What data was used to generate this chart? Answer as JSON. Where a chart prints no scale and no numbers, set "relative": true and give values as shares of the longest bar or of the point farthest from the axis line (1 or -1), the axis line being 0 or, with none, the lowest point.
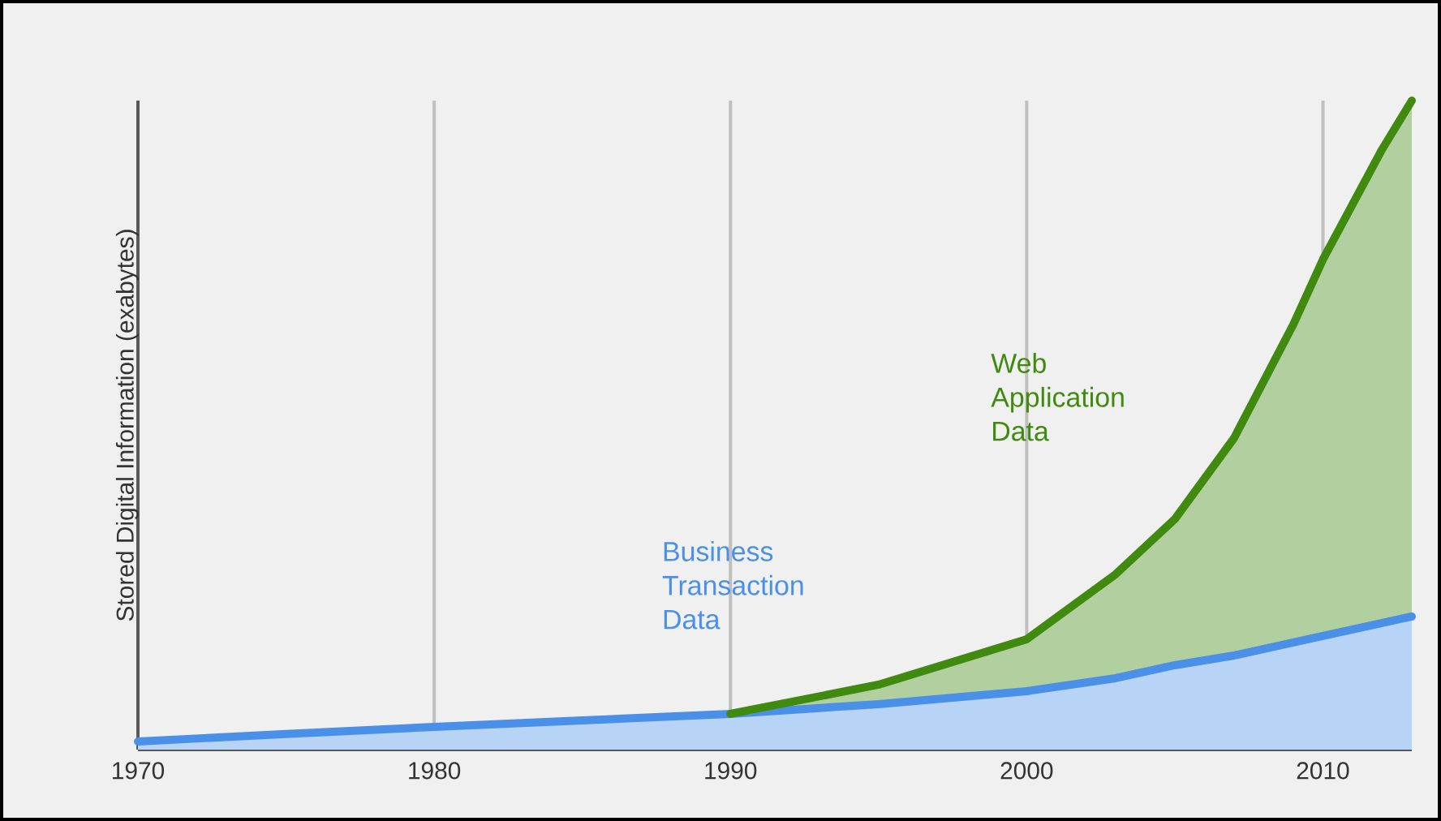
{
  "chart_data": {
    "type": "area",
    "stacked": true,
    "relative": true,
    "ylabel": "Stored Digital Information (exabytes)",
    "x": [
      1970,
      1975,
      1980,
      1985,
      1990,
      1995,
      2000,
      2003,
      2005,
      2007,
      2009,
      2010,
      2011,
      2012,
      2013
    ],
    "xlim": [
      1970,
      2013
    ],
    "xticks": [
      1970,
      1980,
      1990,
      2000,
      2010
    ],
    "grid": "x",
    "series": [
      {
        "name": "Business Transaction Data",
        "color": "#4a90e8",
        "values": [
          0.0125,
          0.024,
          0.035,
          0.045,
          0.055,
          0.07,
          0.09,
          0.11,
          0.13,
          0.145,
          0.165,
          0.175,
          0.185,
          0.195,
          0.205
        ]
      },
      {
        "name": "Web Application Data",
        "color": "#3f8a0f",
        "values": [
          null,
          null,
          null,
          null,
          0,
          0.03,
          0.08,
          0.16,
          0.225,
          0.335,
          0.49,
          0.58,
          0.655,
          0.73,
          0.795
        ]
      }
    ]
  }
}
